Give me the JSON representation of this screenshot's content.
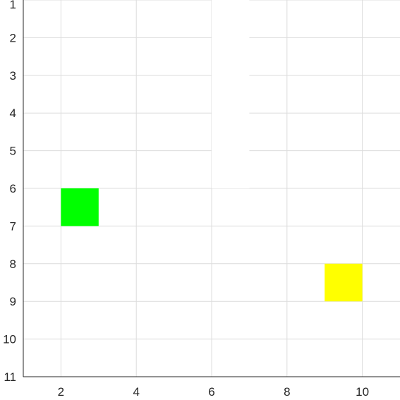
{
  "grid": {
    "x_range": [
      1,
      11
    ],
    "y_range": [
      1,
      11
    ],
    "y_direction": "down",
    "gridlines": true,
    "background": "#ffffff",
    "x_ticks": [
      "2",
      "4",
      "6",
      "8",
      "10"
    ],
    "y_ticks": [
      "1",
      "2",
      "3",
      "4",
      "5",
      "6",
      "7",
      "8",
      "9",
      "10",
      "11"
    ]
  },
  "obstacles": [
    {
      "name": "wall-block",
      "x": 6,
      "y": 1,
      "w": 1,
      "h": 5,
      "color": "#ffffff"
    }
  ],
  "cells": [
    {
      "name": "agent-cell",
      "x": 2,
      "y": 6,
      "color": "#00ff00"
    },
    {
      "name": "goal-cell",
      "x": 9,
      "y": 8,
      "color": "#ffff00"
    }
  ]
}
